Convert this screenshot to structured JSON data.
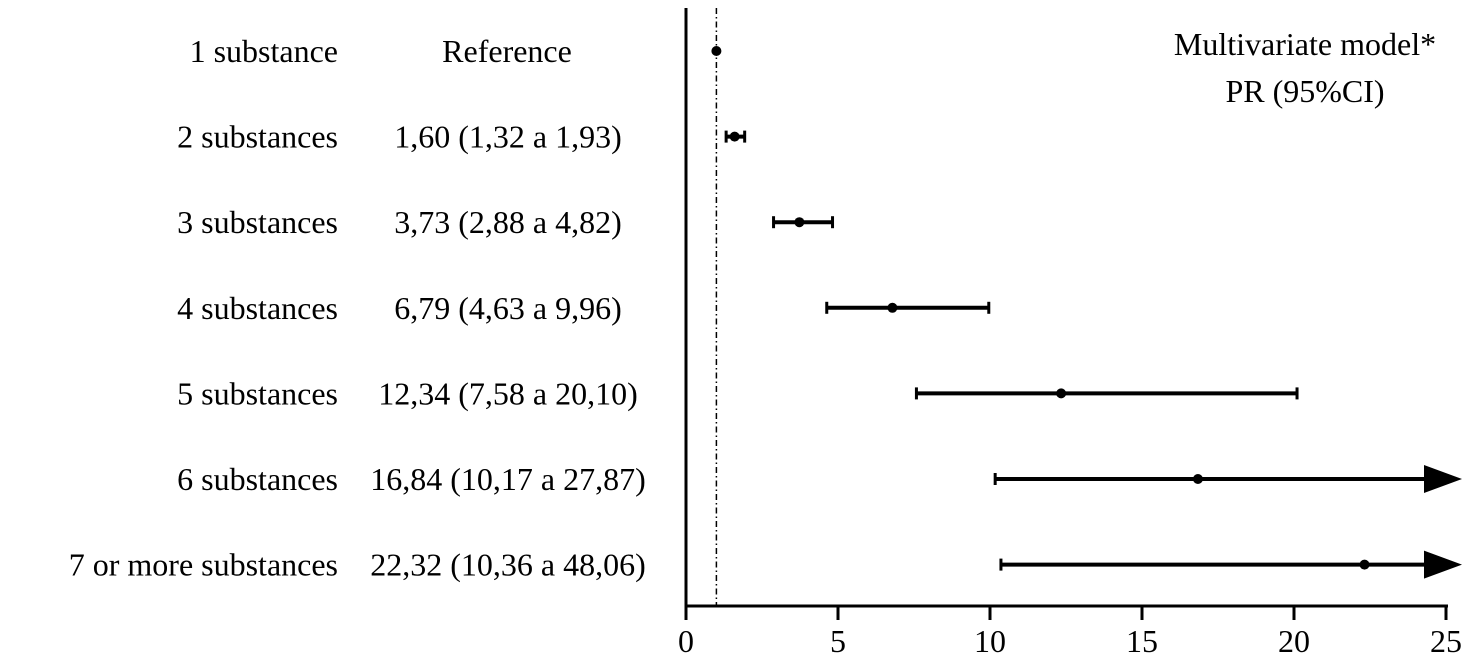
{
  "chart_data": {
    "type": "forest",
    "header": {
      "line1": "Multivariate model*",
      "line2": "PR (95%CI)"
    },
    "xlim": [
      0,
      25
    ],
    "xticks": [
      0,
      5,
      10,
      15,
      20,
      25
    ],
    "xtick_labels": [
      "0",
      "5",
      "10",
      "15",
      "20",
      "25"
    ],
    "reference_line_x": 1,
    "grid": false,
    "rows": [
      {
        "label": "1 substance",
        "value_text": "Reference",
        "estimate": 1.0,
        "lower": null,
        "upper": null,
        "arrow": false
      },
      {
        "label": "2 substances",
        "value_text": "1,60 (1,32 a 1,93)",
        "estimate": 1.6,
        "lower": 1.32,
        "upper": 1.93,
        "arrow": false
      },
      {
        "label": "3 substances",
        "value_text": "3,73 (2,88 a 4,82)",
        "estimate": 3.73,
        "lower": 2.88,
        "upper": 4.82,
        "arrow": false
      },
      {
        "label": "4 substances",
        "value_text": "6,79 (4,63 a 9,96)",
        "estimate": 6.79,
        "lower": 4.63,
        "upper": 9.96,
        "arrow": false
      },
      {
        "label": "5 substances",
        "value_text": "12,34 (7,58 a 20,10)",
        "estimate": 12.34,
        "lower": 7.58,
        "upper": 20.1,
        "arrow": false
      },
      {
        "label": "6 substances",
        "value_text": "16,84 (10,17 a 27,87)",
        "estimate": 16.84,
        "lower": 10.17,
        "upper": 27.87,
        "arrow": true
      },
      {
        "label": "7 or more substances",
        "value_text": "22,32 (10,36 a 48,06)",
        "estimate": 22.32,
        "lower": 10.36,
        "upper": 48.06,
        "arrow": true
      }
    ]
  }
}
